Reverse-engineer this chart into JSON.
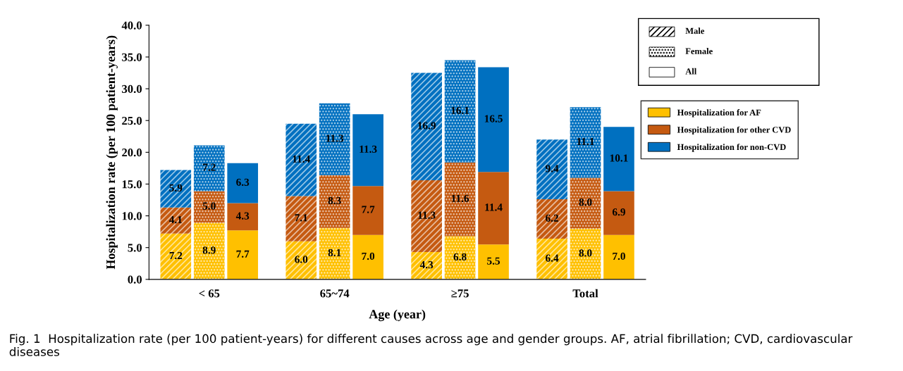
{
  "chart_data": {
    "type": "bar",
    "stacked": true,
    "categories": [
      null,
      "< 65",
      null,
      null,
      "65~74",
      null,
      null,
      "≥75",
      null,
      null,
      "Total",
      null
    ],
    "series": [
      {
        "name": "Hospitalization for AF",
        "color": "#ffc000",
        "values": [
          7.2,
          8.9,
          7.7,
          6.0,
          8.1,
          7.0,
          4.3,
          6.8,
          5.5,
          6.4,
          8.0,
          7.0
        ],
        "value_labels": [
          "7.2",
          "8.9",
          "7.7",
          "6.0",
          "8.1",
          "7.0",
          "4.3",
          "6.8",
          "5.5",
          "6.4",
          "8.0",
          "7.0"
        ]
      },
      {
        "name": "Hospitalization for other CVD",
        "color": "#c55a11",
        "values": [
          4.1,
          5.0,
          4.3,
          7.1,
          8.3,
          7.7,
          11.3,
          11.6,
          11.4,
          6.2,
          8.0,
          6.9
        ],
        "value_labels": [
          "4.1",
          "5.0",
          "4.3",
          "7.1",
          "8.3",
          "7.7",
          "11.3",
          "11.6",
          "11.4",
          "6.2",
          "8.0",
          "6.9"
        ]
      },
      {
        "name": "Hospitalization for non-CVD",
        "color": "#0070c0",
        "values": [
          5.9,
          7.2,
          6.3,
          11.4,
          11.3,
          11.3,
          16.9,
          16.1,
          16.5,
          9.4,
          11.1,
          10.1
        ],
        "value_labels": [
          "5.9",
          "7.2",
          "6.3",
          "11.4",
          "11.3",
          "11.3",
          "16.9",
          "16.1",
          "16.5",
          "9.4",
          "11.1",
          "10.1"
        ]
      }
    ],
    "ylim": [
      0,
      40
    ],
    "yticks": [
      {
        "value": 0,
        "label": "0.0"
      },
      {
        "value": 5,
        "label": "5.0"
      },
      {
        "value": 10,
        "label": "10.0"
      },
      {
        "value": 15,
        "label": "15.0"
      },
      {
        "value": 20,
        "label": "20.0"
      },
      {
        "value": 25,
        "label": "25.0"
      },
      {
        "value": 30,
        "label": "30.0"
      },
      {
        "value": 35,
        "label": "35.0"
      },
      {
        "value": 40,
        "label": "40.0"
      }
    ],
    "xlabel": "Age (year)",
    "ylabel": "Hospitalization rate (per 100 patient-years)",
    "legend": "right",
    "grid": false,
    "annotations": [
      "Male",
      "Female",
      "All",
      "Fig. 1  Hospitalization rate (per 100 patient-years) for different causes across age and gender groups. AF, atrial fibrillation; CVD, cardiovascular diseases"
    ]
  }
}
